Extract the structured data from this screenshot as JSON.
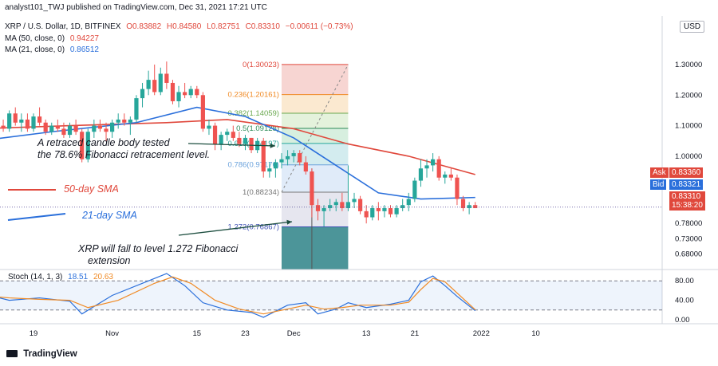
{
  "header": {
    "publisher_line": "analyst101_TWJ published on TradingView.com, Dec 31, 2021 17:21 UTC",
    "symbol_line": "XRP / U.S. Dollar, 1D, BITFINEX",
    "ohlc": {
      "o": "O0.83882",
      "h": "H0.84580",
      "l": "L0.82751",
      "c": "C0.83310",
      "chg": "−0.00611 (−0.73%)"
    },
    "ma50": {
      "label": "MA (50, close, 0)",
      "value": "0.94227"
    },
    "ma21": {
      "label": "MA (21, close, 0)",
      "value": "0.86512"
    },
    "currency_button": "USD"
  },
  "annotations": {
    "retrace_line1": "A retraced candle body tested",
    "retrace_line2": "the 78.6% Fibonacci retracement level.",
    "sma50": "50-day SMA",
    "sma21": "21-day SMA",
    "fall_line1": "XRP will fall to level 1.272 Fibonacci",
    "fall_line2": "extension"
  },
  "price_tags": {
    "ask_label": "Ask",
    "ask_value": "0.83360",
    "bid_label": "Bid",
    "bid_value": "0.83321",
    "last_value": "0.83310",
    "countdown": "15:38:20"
  },
  "stoch": {
    "label": "Stoch (14, 1, 3)",
    "k": "18.51",
    "d": "20.63",
    "levels": [
      80,
      40,
      0
    ],
    "level_labels": [
      "80.00",
      "40.00",
      "0.00"
    ]
  },
  "logo": "TradingView",
  "chart_data": [
    {
      "type": "candlestick",
      "title": "XRP / U.S. Dollar, 1D, BITFINEX",
      "ylim": [
        0.66,
        1.35
      ],
      "y_ticks": [
        1.3,
        1.2,
        1.1,
        1.0,
        0.78,
        0.73,
        0.68
      ],
      "y_tick_labels": [
        "1.30000",
        "1.20000",
        "1.10000",
        "1.00000",
        "0.78000",
        "0.73000",
        "0.68000"
      ],
      "x_tick_labels": [
        "19",
        "Nov",
        "15",
        "23",
        "Dec",
        "13",
        "21",
        "2022",
        "10"
      ],
      "x_tick_dates": [
        "2021-10-19",
        "2021-11-01",
        "2021-11-15",
        "2021-11-23",
        "2021-12-01",
        "2021-12-13",
        "2021-12-21",
        "2022-01-01",
        "2022-01-10"
      ],
      "candles": [
        {
          "date": "2021-10-10",
          "o": 1.13,
          "h": 1.16,
          "l": 1.1,
          "c": 1.15
        },
        {
          "date": "2021-10-11",
          "o": 1.15,
          "h": 1.17,
          "l": 1.11,
          "c": 1.12
        },
        {
          "date": "2021-10-12",
          "o": 1.12,
          "h": 1.13,
          "l": 1.06,
          "c": 1.08
        },
        {
          "date": "2021-10-13",
          "o": 1.08,
          "h": 1.12,
          "l": 1.06,
          "c": 1.1
        },
        {
          "date": "2021-10-14",
          "o": 1.1,
          "h": 1.12,
          "l": 1.08,
          "c": 1.09
        },
        {
          "date": "2021-10-15",
          "o": 1.09,
          "h": 1.15,
          "l": 1.08,
          "c": 1.14
        },
        {
          "date": "2021-10-16",
          "o": 1.14,
          "h": 1.16,
          "l": 1.1,
          "c": 1.11
        },
        {
          "date": "2021-10-17",
          "o": 1.11,
          "h": 1.14,
          "l": 1.08,
          "c": 1.12
        },
        {
          "date": "2021-10-18",
          "o": 1.12,
          "h": 1.14,
          "l": 1.08,
          "c": 1.09
        },
        {
          "date": "2021-10-19",
          "o": 1.09,
          "h": 1.14,
          "l": 1.08,
          "c": 1.13
        },
        {
          "date": "2021-10-20",
          "o": 1.13,
          "h": 1.16,
          "l": 1.1,
          "c": 1.11
        },
        {
          "date": "2021-10-21",
          "o": 1.11,
          "h": 1.12,
          "l": 1.07,
          "c": 1.08
        },
        {
          "date": "2021-10-22",
          "o": 1.08,
          "h": 1.11,
          "l": 1.07,
          "c": 1.1
        },
        {
          "date": "2021-10-23",
          "o": 1.1,
          "h": 1.12,
          "l": 1.08,
          "c": 1.09
        },
        {
          "date": "2021-10-24",
          "o": 1.09,
          "h": 1.11,
          "l": 1.06,
          "c": 1.07
        },
        {
          "date": "2021-10-25",
          "o": 1.07,
          "h": 1.11,
          "l": 1.06,
          "c": 1.1
        },
        {
          "date": "2021-10-26",
          "o": 1.1,
          "h": 1.12,
          "l": 1.07,
          "c": 1.08
        },
        {
          "date": "2021-10-27",
          "o": 1.08,
          "h": 1.09,
          "l": 0.98,
          "c": 0.99
        },
        {
          "date": "2021-10-28",
          "o": 0.99,
          "h": 1.09,
          "l": 0.98,
          "c": 1.08
        },
        {
          "date": "2021-10-29",
          "o": 1.08,
          "h": 1.12,
          "l": 1.06,
          "c": 1.1
        },
        {
          "date": "2021-10-30",
          "o": 1.1,
          "h": 1.12,
          "l": 1.08,
          "c": 1.09
        },
        {
          "date": "2021-10-31",
          "o": 1.09,
          "h": 1.11,
          "l": 1.05,
          "c": 1.08
        },
        {
          "date": "2021-11-01",
          "o": 1.08,
          "h": 1.12,
          "l": 1.06,
          "c": 1.11
        },
        {
          "date": "2021-11-02",
          "o": 1.11,
          "h": 1.14,
          "l": 1.09,
          "c": 1.12
        },
        {
          "date": "2021-11-03",
          "o": 1.12,
          "h": 1.14,
          "l": 1.1,
          "c": 1.11
        },
        {
          "date": "2021-11-04",
          "o": 1.11,
          "h": 1.13,
          "l": 1.07,
          "c": 1.12
        },
        {
          "date": "2021-11-05",
          "o": 1.12,
          "h": 1.2,
          "l": 1.11,
          "c": 1.19
        },
        {
          "date": "2021-11-06",
          "o": 1.19,
          "h": 1.24,
          "l": 1.16,
          "c": 1.22
        },
        {
          "date": "2021-11-07",
          "o": 1.22,
          "h": 1.28,
          "l": 1.2,
          "c": 1.25
        },
        {
          "date": "2021-11-08",
          "o": 1.25,
          "h": 1.3,
          "l": 1.2,
          "c": 1.21
        },
        {
          "date": "2021-11-09",
          "o": 1.21,
          "h": 1.29,
          "l": 1.2,
          "c": 1.27
        },
        {
          "date": "2021-11-10",
          "o": 1.27,
          "h": 1.31,
          "l": 1.22,
          "c": 1.24
        },
        {
          "date": "2021-11-11",
          "o": 1.24,
          "h": 1.25,
          "l": 1.17,
          "c": 1.18
        },
        {
          "date": "2021-11-12",
          "o": 1.18,
          "h": 1.23,
          "l": 1.16,
          "c": 1.21
        },
        {
          "date": "2021-11-13",
          "o": 1.21,
          "h": 1.24,
          "l": 1.19,
          "c": 1.2
        },
        {
          "date": "2021-11-14",
          "o": 1.2,
          "h": 1.23,
          "l": 1.19,
          "c": 1.22
        },
        {
          "date": "2021-11-15",
          "o": 1.22,
          "h": 1.23,
          "l": 1.19,
          "c": 1.2
        },
        {
          "date": "2021-11-16",
          "o": 1.2,
          "h": 1.21,
          "l": 1.08,
          "c": 1.09
        },
        {
          "date": "2021-11-17",
          "o": 1.09,
          "h": 1.12,
          "l": 1.07,
          "c": 1.1
        },
        {
          "date": "2021-11-18",
          "o": 1.1,
          "h": 1.11,
          "l": 1.02,
          "c": 1.04
        },
        {
          "date": "2021-11-19",
          "o": 1.04,
          "h": 1.08,
          "l": 1.02,
          "c": 1.07
        },
        {
          "date": "2021-11-20",
          "o": 1.07,
          "h": 1.09,
          "l": 1.05,
          "c": 1.08
        },
        {
          "date": "2021-11-21",
          "o": 1.08,
          "h": 1.1,
          "l": 1.05,
          "c": 1.06
        },
        {
          "date": "2021-11-22",
          "o": 1.06,
          "h": 1.08,
          "l": 1.03,
          "c": 1.04
        },
        {
          "date": "2021-11-23",
          "o": 1.04,
          "h": 1.07,
          "l": 1.02,
          "c": 1.06
        },
        {
          "date": "2021-11-24",
          "o": 1.06,
          "h": 1.06,
          "l": 1.01,
          "c": 1.02
        },
        {
          "date": "2021-11-25",
          "o": 1.02,
          "h": 1.06,
          "l": 1.01,
          "c": 1.05
        },
        {
          "date": "2021-11-26",
          "o": 1.05,
          "h": 1.06,
          "l": 0.93,
          "c": 0.95
        },
        {
          "date": "2021-11-27",
          "o": 0.95,
          "h": 0.98,
          "l": 0.93,
          "c": 0.96
        },
        {
          "date": "2021-11-28",
          "o": 0.96,
          "h": 0.99,
          "l": 0.93,
          "c": 0.98
        },
        {
          "date": "2021-11-29",
          "o": 0.98,
          "h": 1.01,
          "l": 0.96,
          "c": 0.99
        },
        {
          "date": "2021-11-30",
          "o": 0.99,
          "h": 1.02,
          "l": 0.97,
          "c": 1.0
        },
        {
          "date": "2021-12-01",
          "o": 1.0,
          "h": 1.02,
          "l": 0.98,
          "c": 1.01
        },
        {
          "date": "2021-12-02",
          "o": 1.01,
          "h": 1.02,
          "l": 0.97,
          "c": 0.98
        },
        {
          "date": "2021-12-03",
          "o": 0.98,
          "h": 1.0,
          "l": 0.94,
          "c": 0.95
        },
        {
          "date": "2021-12-04",
          "o": 0.95,
          "h": 0.96,
          "l": 0.8,
          "c": 0.84
        },
        {
          "date": "2021-12-05",
          "o": 0.84,
          "h": 0.86,
          "l": 0.79,
          "c": 0.82
        },
        {
          "date": "2021-12-06",
          "o": 0.82,
          "h": 0.84,
          "l": 0.77,
          "c": 0.83
        },
        {
          "date": "2021-12-07",
          "o": 0.83,
          "h": 0.86,
          "l": 0.82,
          "c": 0.84
        },
        {
          "date": "2021-12-08",
          "o": 0.84,
          "h": 0.86,
          "l": 0.82,
          "c": 0.85
        },
        {
          "date": "2021-12-09",
          "o": 0.85,
          "h": 0.88,
          "l": 0.82,
          "c": 0.83
        },
        {
          "date": "2021-12-10",
          "o": 0.83,
          "h": 0.97,
          "l": 0.82,
          "c": 0.85
        },
        {
          "date": "2021-12-11",
          "o": 0.85,
          "h": 0.88,
          "l": 0.83,
          "c": 0.86
        },
        {
          "date": "2021-12-12",
          "o": 0.86,
          "h": 0.87,
          "l": 0.81,
          "c": 0.82
        },
        {
          "date": "2021-12-13",
          "o": 0.82,
          "h": 0.84,
          "l": 0.78,
          "c": 0.8
        },
        {
          "date": "2021-12-14",
          "o": 0.8,
          "h": 0.84,
          "l": 0.79,
          "c": 0.83
        },
        {
          "date": "2021-12-15",
          "o": 0.83,
          "h": 0.85,
          "l": 0.79,
          "c": 0.82
        },
        {
          "date": "2021-12-16",
          "o": 0.82,
          "h": 0.84,
          "l": 0.8,
          "c": 0.83
        },
        {
          "date": "2021-12-17",
          "o": 0.83,
          "h": 0.84,
          "l": 0.8,
          "c": 0.81
        },
        {
          "date": "2021-12-18",
          "o": 0.81,
          "h": 0.84,
          "l": 0.8,
          "c": 0.83
        },
        {
          "date": "2021-12-19",
          "o": 0.83,
          "h": 0.86,
          "l": 0.82,
          "c": 0.84
        },
        {
          "date": "2021-12-20",
          "o": 0.84,
          "h": 0.88,
          "l": 0.82,
          "c": 0.86
        },
        {
          "date": "2021-12-21",
          "o": 0.86,
          "h": 0.93,
          "l": 0.85,
          "c": 0.92
        },
        {
          "date": "2021-12-22",
          "o": 0.92,
          "h": 0.99,
          "l": 0.9,
          "c": 0.96
        },
        {
          "date": "2021-12-23",
          "o": 0.96,
          "h": 0.99,
          "l": 0.93,
          "c": 0.97
        },
        {
          "date": "2021-12-24",
          "o": 0.97,
          "h": 1.01,
          "l": 0.95,
          "c": 0.99
        },
        {
          "date": "2021-12-25",
          "o": 0.99,
          "h": 1.0,
          "l": 0.92,
          "c": 0.93
        },
        {
          "date": "2021-12-26",
          "o": 0.93,
          "h": 0.95,
          "l": 0.91,
          "c": 0.94
        },
        {
          "date": "2021-12-27",
          "o": 0.94,
          "h": 0.96,
          "l": 0.92,
          "c": 0.93
        },
        {
          "date": "2021-12-28",
          "o": 0.93,
          "h": 0.94,
          "l": 0.84,
          "c": 0.86
        },
        {
          "date": "2021-12-29",
          "o": 0.86,
          "h": 0.87,
          "l": 0.82,
          "c": 0.83
        },
        {
          "date": "2021-12-30",
          "o": 0.83,
          "h": 0.85,
          "l": 0.81,
          "c": 0.84
        },
        {
          "date": "2021-12-31",
          "o": 0.84,
          "h": 0.85,
          "l": 0.83,
          "c": 0.83
        }
      ],
      "series": [
        {
          "name": "MA (50, close, 0)",
          "color": "#e0483c",
          "points": [
            [
              "2021-10-10",
              1.09
            ],
            [
              "2021-10-25",
              1.1
            ],
            [
              "2021-11-10",
              1.11
            ],
            [
              "2021-11-20",
              1.12
            ],
            [
              "2021-12-01",
              1.09
            ],
            [
              "2021-12-10",
              1.04
            ],
            [
              "2021-12-20",
              1.0
            ],
            [
              "2021-12-31",
              0.94
            ]
          ]
        },
        {
          "name": "MA (21, close, 0)",
          "color": "#2a6fdb",
          "points": [
            [
              "2021-10-10",
              1.05
            ],
            [
              "2021-10-22",
              1.08
            ],
            [
              "2021-11-05",
              1.11
            ],
            [
              "2021-11-15",
              1.16
            ],
            [
              "2021-11-23",
              1.13
            ],
            [
              "2021-12-01",
              1.06
            ],
            [
              "2021-12-08",
              0.97
            ],
            [
              "2021-12-15",
              0.88
            ],
            [
              "2021-12-22",
              0.86
            ],
            [
              "2021-12-31",
              0.865
            ]
          ]
        }
      ],
      "fibonacci": {
        "start": "2021-11-29",
        "end": "2021-12-10",
        "levels": [
          {
            "label": "0(1.30023)",
            "value": 1.30023
          },
          {
            "label": "0.236(1.20161)",
            "value": 1.20161
          },
          {
            "label": "0.382(1.14059)",
            "value": 1.14059
          },
          {
            "label": "0.5(1.09128)",
            "value": 1.09128
          },
          {
            "label": "0.618(1.04197)",
            "value": 1.04197
          },
          {
            "label": "0.786(0.97176)",
            "value": 0.97176
          },
          {
            "label": "1(0.88234)",
            "value": 0.88234
          },
          {
            "label": "1.272(0.76867)",
            "value": 0.76867
          }
        ]
      },
      "ask": 0.8336,
      "bid": 0.83321,
      "last": 0.8331
    },
    {
      "type": "line",
      "title": "Stoch (14, 1, 3)",
      "ylim": [
        0,
        100
      ],
      "series": [
        {
          "name": "%K",
          "color": "#2a6fdb",
          "values": [
            [
              "2021-10-10",
              55
            ],
            [
              "2021-10-15",
              40
            ],
            [
              "2021-10-20",
              45
            ],
            [
              "2021-10-25",
              38
            ],
            [
              "2021-10-27",
              12
            ],
            [
              "2021-11-01",
              50
            ],
            [
              "2021-11-08",
              85
            ],
            [
              "2021-11-10",
              95
            ],
            [
              "2021-11-13",
              70
            ],
            [
              "2021-11-16",
              35
            ],
            [
              "2021-11-20",
              20
            ],
            [
              "2021-11-24",
              15
            ],
            [
              "2021-11-26",
              5
            ],
            [
              "2021-11-30",
              30
            ],
            [
              "2021-12-03",
              35
            ],
            [
              "2021-12-05",
              12
            ],
            [
              "2021-12-08",
              22
            ],
            [
              "2021-12-10",
              35
            ],
            [
              "2021-12-13",
              25
            ],
            [
              "2021-12-17",
              32
            ],
            [
              "2021-12-20",
              40
            ],
            [
              "2021-12-22",
              78
            ],
            [
              "2021-12-24",
              90
            ],
            [
              "2021-12-26",
              70
            ],
            [
              "2021-12-28",
              48
            ],
            [
              "2021-12-31",
              18.51
            ]
          ]
        },
        {
          "name": "%D",
          "color": "#f08a24",
          "values": [
            [
              "2021-10-10",
              50
            ],
            [
              "2021-10-15",
              45
            ],
            [
              "2021-10-20",
              42
            ],
            [
              "2021-10-25",
              40
            ],
            [
              "2021-10-28",
              25
            ],
            [
              "2021-11-02",
              40
            ],
            [
              "2021-11-08",
              75
            ],
            [
              "2021-11-11",
              88
            ],
            [
              "2021-11-14",
              75
            ],
            [
              "2021-11-18",
              40
            ],
            [
              "2021-11-22",
              22
            ],
            [
              "2021-11-26",
              12
            ],
            [
              "2021-11-30",
              22
            ],
            [
              "2021-12-03",
              30
            ],
            [
              "2021-12-06",
              22
            ],
            [
              "2021-12-09",
              25
            ],
            [
              "2021-12-12",
              30
            ],
            [
              "2021-12-17",
              30
            ],
            [
              "2021-12-20",
              36
            ],
            [
              "2021-12-22",
              62
            ],
            [
              "2021-12-24",
              85
            ],
            [
              "2021-12-26",
              78
            ],
            [
              "2021-12-28",
              55
            ],
            [
              "2021-12-31",
              20.63
            ]
          ]
        }
      ]
    }
  ]
}
